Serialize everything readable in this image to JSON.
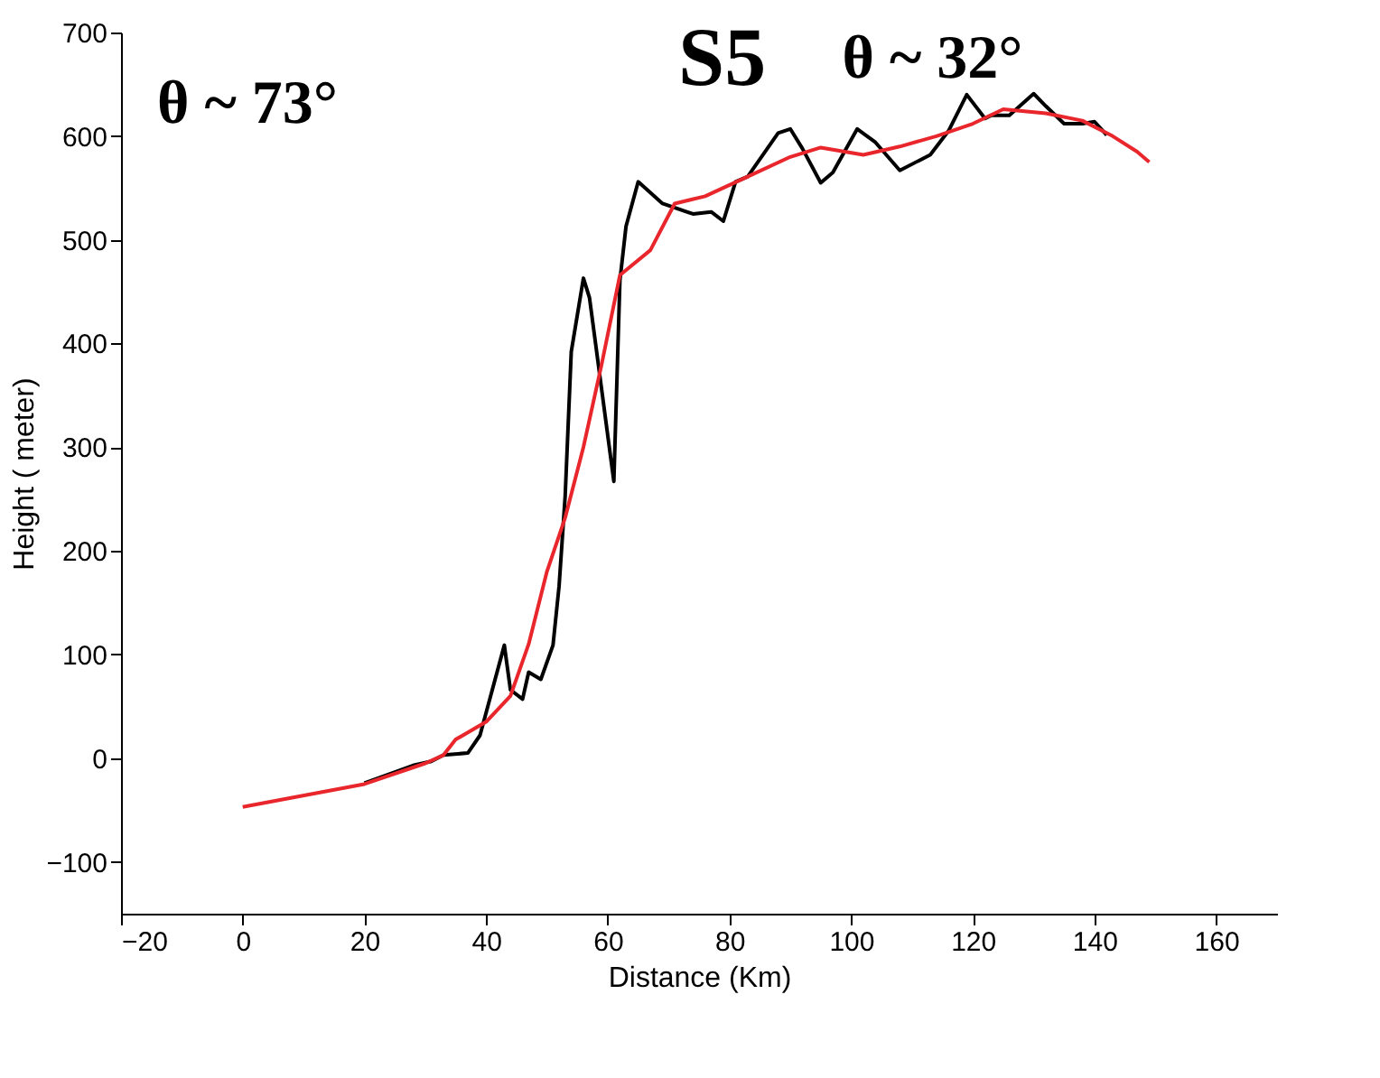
{
  "chart_data": {
    "type": "line",
    "xlabel": "Distance (Km)",
    "ylabel": "Height ( meter)",
    "annotations": [
      "θ ~ 73°",
      "S5",
      "θ ~ 32°"
    ],
    "xlim": [
      -20,
      170
    ],
    "xticks": [
      -20,
      0,
      20,
      40,
      60,
      80,
      100,
      120,
      140,
      160
    ],
    "ylim": [
      -150,
      700
    ],
    "yticks": [
      -100,
      0,
      100,
      200,
      300,
      400,
      500,
      600,
      700
    ],
    "grid": false,
    "line_style": "solid",
    "marker": "none",
    "series": [
      {
        "color": "#000000",
        "x": [
          20,
          28,
          31,
          33,
          37,
          39,
          43,
          44,
          46,
          47,
          49,
          51,
          52,
          53,
          54,
          56,
          57,
          61,
          62,
          63,
          65,
          69,
          74,
          77,
          79,
          81,
          83,
          88,
          90,
          92,
          95,
          97,
          101,
          104,
          108,
          113,
          116,
          119,
          122,
          123,
          126,
          130,
          132,
          135,
          138,
          140,
          142
        ],
        "values": [
          -24,
          -7,
          -3,
          3,
          5,
          22,
          109,
          66,
          57,
          83,
          76,
          109,
          166,
          253,
          392,
          463,
          444,
          267,
          461,
          513,
          556,
          535,
          525,
          527,
          518,
          556,
          561,
          603,
          607,
          588,
          555,
          565,
          607,
          594,
          567,
          582,
          605,
          640,
          617,
          620,
          620,
          641,
          629,
          612,
          612,
          614,
          601
        ]
      },
      {
        "color": "#e8262b",
        "x": [
          0,
          20,
          30,
          33,
          35,
          40,
          44,
          47,
          50,
          53,
          56,
          59,
          62,
          67,
          71,
          76,
          83,
          90,
          95,
          102,
          108,
          114,
          120,
          125,
          132,
          138,
          143,
          147,
          149
        ],
        "values": [
          -47,
          -25,
          -5,
          3,
          18,
          35,
          60,
          110,
          180,
          232,
          300,
          380,
          466,
          490,
          535,
          542,
          561,
          580,
          589,
          582,
          590,
          600,
          612,
          626,
          622,
          615,
          600,
          585,
          575
        ]
      }
    ]
  }
}
